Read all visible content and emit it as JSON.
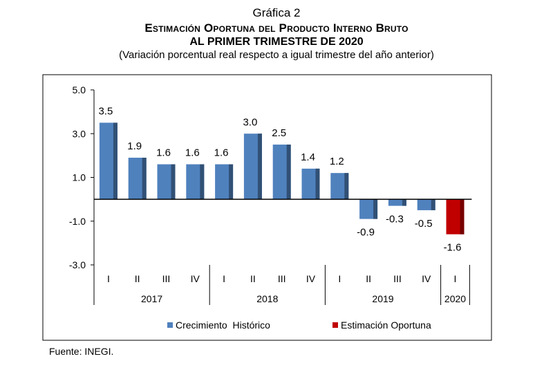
{
  "header": {
    "figure_label": "Gráfica 2",
    "title_line1": "Estimación Oportuna del Producto Interno Bruto",
    "title_line2": "al primer trimestre de 2020",
    "subtitle": "(Variación porcentual real respecto a igual trimestre del año anterior)"
  },
  "chart_data": {
    "type": "bar",
    "ylim": [
      -3.0,
      5.0
    ],
    "yticks": [
      "5.0",
      "3.0",
      "1.0",
      "-1.0",
      "-3.0"
    ],
    "ytick_values": [
      5,
      3,
      1,
      -1,
      -3
    ],
    "categories": [
      "I",
      "II",
      "III",
      "IV",
      "I",
      "II",
      "III",
      "IV",
      "I",
      "II",
      "III",
      "IV",
      "I"
    ],
    "years": [
      {
        "label": "2017",
        "count": 4
      },
      {
        "label": "2018",
        "count": 4
      },
      {
        "label": "2019",
        "count": 4
      },
      {
        "label": "2020",
        "count": 1
      }
    ],
    "values": [
      3.5,
      1.9,
      1.6,
      1.6,
      1.6,
      3.0,
      2.5,
      1.4,
      1.2,
      -0.9,
      -0.3,
      -0.5,
      -1.6
    ],
    "value_labels": [
      "3.5",
      "1.9",
      "1.6",
      "1.6",
      "1.6",
      "3.0",
      "2.5",
      "1.4",
      "1.2",
      "-0.9",
      "-0.3",
      "-0.5",
      "-1.6"
    ],
    "series_of_bar": [
      "hist",
      "hist",
      "hist",
      "hist",
      "hist",
      "hist",
      "hist",
      "hist",
      "hist",
      "hist",
      "hist",
      "hist",
      "est"
    ],
    "legend": [
      {
        "key": "hist",
        "label": "Crecimiento  Histórico",
        "color": "#4f81bd"
      },
      {
        "key": "est",
        "label": "Estimación Oportuna",
        "color": "#c00000"
      }
    ]
  },
  "footer": {
    "source": "Fuente: INEGI."
  }
}
